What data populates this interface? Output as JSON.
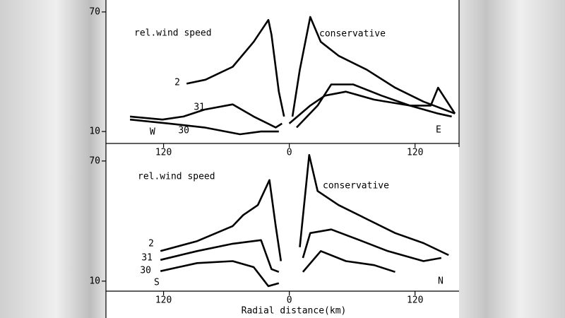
{
  "chart_data": [
    {
      "type": "line",
      "left_label": "rel.wind speed",
      "right_label": "conservative",
      "left_direction": "W",
      "right_direction": "E",
      "xlim": [
        -175,
        162
      ],
      "ylim": [
        4,
        76
      ],
      "xticks": [
        {
          "value": -120,
          "label": "120"
        },
        0,
        120
      ],
      "yticks": [
        10,
        70
      ],
      "series": [
        {
          "name": "2",
          "color": "#000000",
          "x": [
            -98,
            -80,
            -54,
            -34,
            -20,
            -17,
            -10,
            -5,
            null,
            3,
            10,
            20,
            30,
            47,
            74,
            101,
            128,
            158
          ],
          "values": [
            34,
            36,
            42.5,
            55,
            66,
            58.6,
            30,
            17.5,
            null,
            17.5,
            41,
            67.5,
            55,
            48,
            41,
            32,
            25,
            19
          ]
        },
        {
          "name": "31",
          "color": "#000000",
          "x": [
            -152,
            -121,
            -101,
            -81,
            -54,
            -34,
            -13,
            -7,
            null,
            7,
            27,
            40,
            61,
            88,
            115,
            135,
            142,
            158
          ],
          "values": [
            17.5,
            16,
            17.5,
            21,
            23.6,
            17.5,
            12,
            14,
            null,
            12,
            23,
            33.6,
            33.6,
            28,
            23,
            23,
            32,
            19
          ]
        },
        {
          "name": "30",
          "color": "#000000",
          "x": [
            -152,
            -115,
            -81,
            -47,
            -27,
            -10,
            null,
            0,
            20,
            34,
            54,
            81,
            115,
            142,
            155
          ],
          "values": [
            16,
            14,
            12,
            8.6,
            10,
            10,
            null,
            14,
            23,
            28,
            30,
            26,
            23,
            19,
            17.5
          ]
        }
      ]
    },
    {
      "type": "line",
      "left_label": "rel.wind speed",
      "right_label": "conservative",
      "left_direction": "S",
      "right_direction": "N",
      "x_label": "Radial distance(km)",
      "xlim": [
        -175,
        162
      ],
      "ylim": [
        5,
        77
      ],
      "xticks": [
        {
          "value": -120,
          "label": "120"
        },
        0,
        120
      ],
      "yticks": [
        10,
        70
      ],
      "series": [
        {
          "name": "2",
          "color": "#000000",
          "x": [
            -123,
            -88,
            -54,
            -44,
            -30,
            -19,
            -13,
            -8,
            null,
            10,
            19,
            27,
            47,
            74,
            101,
            128,
            152
          ],
          "values": [
            25,
            30,
            37.5,
            43,
            48,
            60.5,
            37.5,
            20,
            null,
            27,
            73,
            55,
            48,
            41,
            34,
            29,
            23
          ]
        },
        {
          "name": "31",
          "color": "#000000",
          "x": [
            -123,
            -88,
            -54,
            -27,
            -17,
            -10,
            null,
            13,
            20,
            40,
            67,
            94,
            128,
            145
          ],
          "values": [
            20.6,
            25,
            28.7,
            30.5,
            16,
            14.6,
            null,
            21.6,
            34,
            35.8,
            30.5,
            25,
            20,
            21.6
          ]
        },
        {
          "name": "30",
          "color": "#000000",
          "x": [
            -123,
            -88,
            -54,
            -34,
            -20,
            -10,
            null,
            13,
            30,
            54,
            81,
            101
          ],
          "values": [
            15,
            19,
            20,
            17,
            7.5,
            9,
            null,
            14.6,
            25,
            20,
            18,
            14.6
          ]
        }
      ]
    }
  ]
}
